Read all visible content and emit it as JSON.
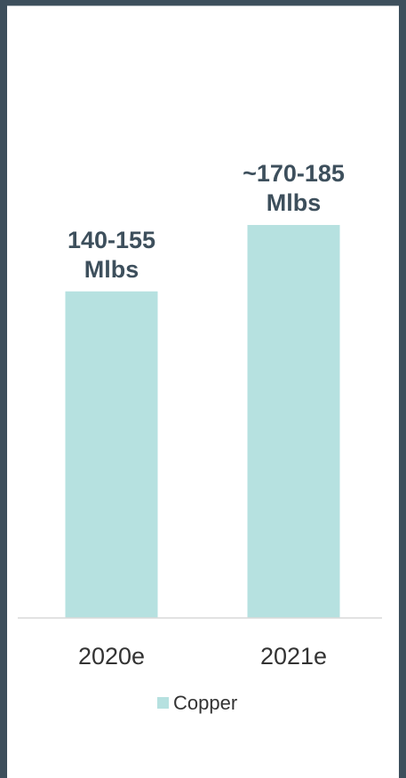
{
  "chart_data": {
    "type": "bar",
    "categories": [
      "2020e",
      "2021e"
    ],
    "series": [
      {
        "name": "Copper",
        "color": "#b6e1e0",
        "values": [
          147.5,
          177.5
        ],
        "value_labels": [
          "140-155 Mlbs",
          "~170-185 Mlbs"
        ]
      }
    ],
    "ylim": [
      0,
      200
    ]
  }
}
